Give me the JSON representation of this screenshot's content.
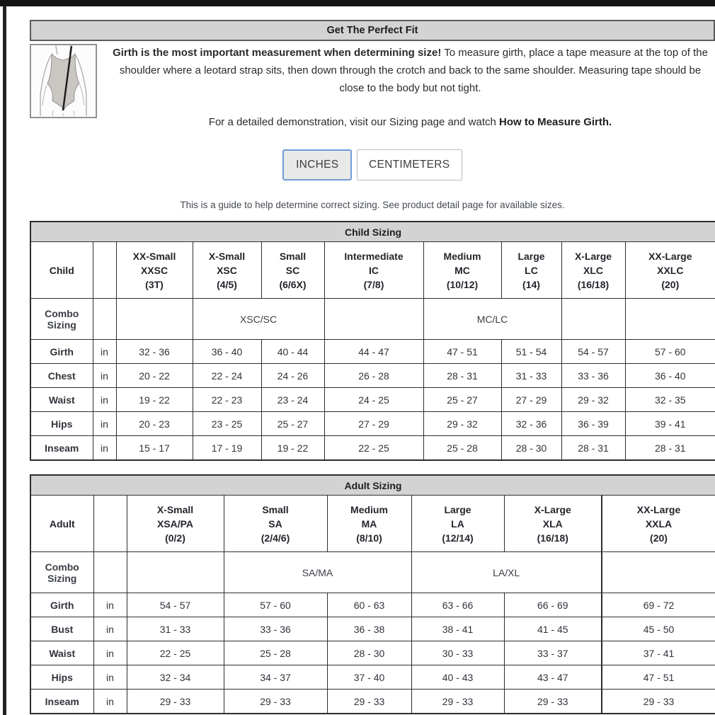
{
  "page": {
    "title": "Get The Perfect Fit",
    "intro_bold": "Girth is the most important measurement when determining size!",
    "intro_rest": " To measure girth, place a tape measure at the top of the shoulder where a leotard strap sits, then down through the crotch and back to the same shoulder. Measuring tape should be close to the body but not tight.",
    "demo_text": "For a detailed demonstration, visit our Sizing page and watch ",
    "demo_bold": "How to Measure Girth.",
    "note": "This is a guide to help determine correct sizing. See product detail page for available sizes."
  },
  "units": {
    "inches_label": "INCHES",
    "centimeters_label": "CENTIMETERS",
    "selected": "INCHES",
    "active_border_color": "#6f9cd4",
    "active_bg_color": "#e9e9e9"
  },
  "colors": {
    "banner_bg": "#d3d3d3",
    "table_border": "#2e2e2e"
  },
  "child_table": {
    "id": "child",
    "title": "Child Sizing",
    "row_label": "Child",
    "combo_label": "Combo Sizing",
    "unit": "in",
    "columns": [
      {
        "name": "XX-Small",
        "code": "XXSC",
        "sizes": "(3T)"
      },
      {
        "name": "X-Small",
        "code": "XSC",
        "sizes": "(4/5)"
      },
      {
        "name": "Small",
        "code": "SC",
        "sizes": "(6/6X)"
      },
      {
        "name": "Intermediate",
        "code": "IC",
        "sizes": "(7/8)"
      },
      {
        "name": "Medium",
        "code": "MC",
        "sizes": "(10/12)"
      },
      {
        "name": "Large",
        "code": "LC",
        "sizes": "(14)"
      },
      {
        "name": "X-Large",
        "code": "XLC",
        "sizes": "(16/18)"
      },
      {
        "name": "XX-Large",
        "code": "XXLC",
        "sizes": "(20)"
      }
    ],
    "combo_cells": [
      {
        "text": "",
        "span": 1
      },
      {
        "text": "XSC/SC",
        "span": 2
      },
      {
        "text": "",
        "span": 1
      },
      {
        "text": "MC/LC",
        "span": 2
      },
      {
        "text": "",
        "span": 1
      },
      {
        "text": "",
        "span": 1
      }
    ],
    "rows": [
      {
        "label": "Girth",
        "values": [
          "32 - 36",
          "36 - 40",
          "40 - 44",
          "44 - 47",
          "47 - 51",
          "51 - 54",
          "54 - 57",
          "57 - 60"
        ]
      },
      {
        "label": "Chest",
        "values": [
          "20 - 22",
          "22 - 24",
          "24 - 26",
          "26 - 28",
          "28 - 31",
          "31 - 33",
          "33 - 36",
          "36 - 40"
        ]
      },
      {
        "label": "Waist",
        "values": [
          "19 - 22",
          "22 - 23",
          "23 - 24",
          "24 - 25",
          "25 - 27",
          "27 - 29",
          "29 - 32",
          "32 - 35"
        ]
      },
      {
        "label": "Hips",
        "values": [
          "20 - 23",
          "23 - 25",
          "25 - 27",
          "27 - 29",
          "29 - 32",
          "32 - 36",
          "36 - 39",
          "39 - 41"
        ]
      },
      {
        "label": "Inseam",
        "values": [
          "15 - 17",
          "17 - 19",
          "19 - 22",
          "22 - 25",
          "25 - 28",
          "28 - 30",
          "28 - 31",
          "28 - 31"
        ]
      }
    ]
  },
  "adult_table": {
    "id": "adult",
    "title": "Adult Sizing",
    "row_label": "Adult",
    "combo_label": "Combo Sizing",
    "unit": "in",
    "columns": [
      {
        "name": "X-Small",
        "code": "XSA/PA",
        "sizes": "(0/2)"
      },
      {
        "name": "Small",
        "code": "SA",
        "sizes": "(2/4/6)"
      },
      {
        "name": "Medium",
        "code": "MA",
        "sizes": "(8/10)"
      },
      {
        "name": "Large",
        "code": "LA",
        "sizes": "(12/14)"
      },
      {
        "name": "X-Large",
        "code": "XLA",
        "sizes": "(16/18)"
      },
      {
        "name": "XX-Large",
        "code": "XXLA",
        "sizes": "(20)"
      }
    ],
    "combo_cells": [
      {
        "text": "",
        "span": 1
      },
      {
        "text": "SA/MA",
        "span": 2
      },
      {
        "text": "LA/XL",
        "span": 2
      },
      {
        "text": "",
        "span": 1
      }
    ],
    "rows": [
      {
        "label": "Girth",
        "values": [
          "54 - 57",
          "57 - 60",
          "60 - 63",
          "63 - 66",
          "66 - 69",
          "69 - 72"
        ]
      },
      {
        "label": "Bust",
        "values": [
          "31 - 33",
          "33 - 36",
          "36 - 38",
          "38 - 41",
          "41 - 45",
          "45 - 50"
        ]
      },
      {
        "label": "Waist",
        "values": [
          "22 - 25",
          "25 - 28",
          "28 - 30",
          "30 - 33",
          "33 - 37",
          "37 - 41"
        ]
      },
      {
        "label": "Hips",
        "values": [
          "32 - 34",
          "34 - 37",
          "37 - 40",
          "40 - 43",
          "43 - 47",
          "47 - 51"
        ]
      },
      {
        "label": "Inseam",
        "values": [
          "29 - 33",
          "29 - 33",
          "29 - 33",
          "29 - 33",
          "29 - 33",
          "29 - 33"
        ]
      }
    ]
  }
}
